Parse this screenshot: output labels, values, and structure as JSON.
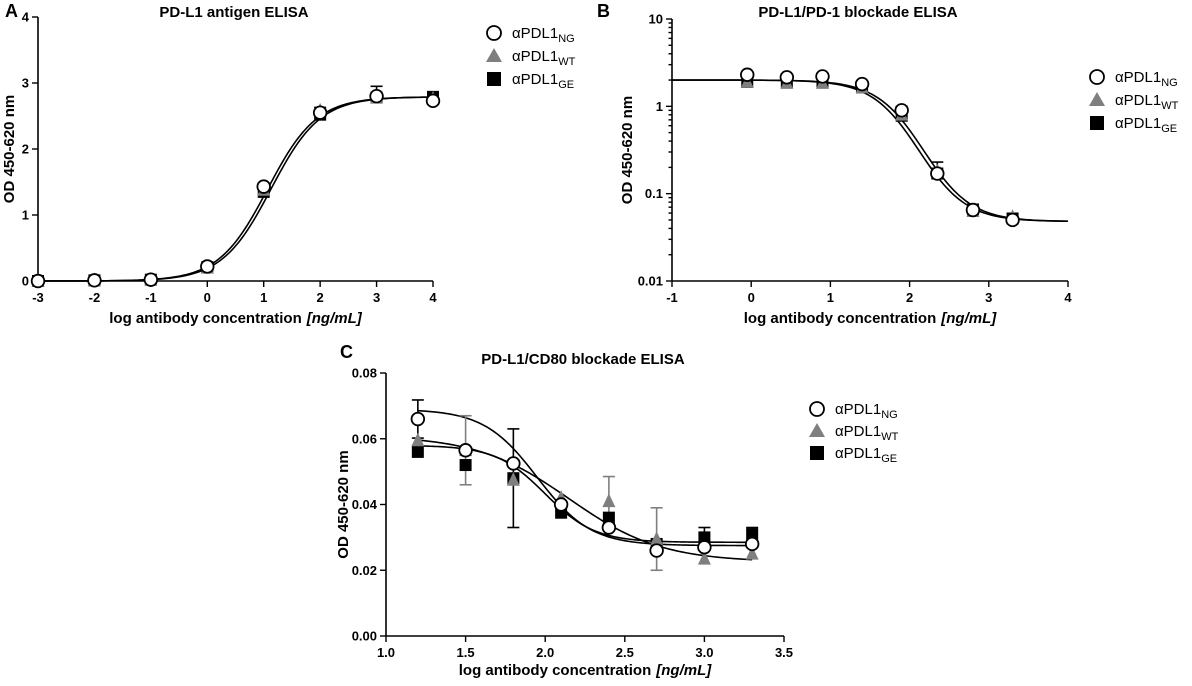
{
  "chart_data": [
    {
      "panel": "A",
      "type": "scatter",
      "title": "PD-L1 antigen ELISA",
      "xlabel": "log antibody concentration",
      "xlabel_unit": "[ng/mL]",
      "ylabel": "OD 450-620 nm",
      "xlim": [
        -3,
        4
      ],
      "ylim": [
        0,
        4
      ],
      "yscale": "linear",
      "xticks": [
        -3,
        -2,
        -1,
        0,
        1,
        2,
        3,
        4
      ],
      "xtick_labels": [
        "-3",
        "-2",
        "-1",
        "0",
        "1",
        "2",
        "3",
        "4"
      ],
      "yticks": [
        0,
        1,
        2,
        3,
        4
      ],
      "ytick_labels": [
        "0",
        "1",
        "2",
        "3",
        "4"
      ],
      "legend_position": "top-right",
      "fit": {
        "bottom": 0,
        "top": 2.79,
        "ec50": 1.1,
        "hill": 1.0,
        "shifts": [
          -0.03,
          0.03
        ]
      },
      "series": [
        {
          "name": "αPDL1",
          "sub": "NG",
          "marker": "circle",
          "color": "#000000",
          "x": [
            -3,
            -2,
            -1,
            0,
            1,
            2,
            3,
            4
          ],
          "y": [
            0.0,
            0.01,
            0.02,
            0.22,
            1.43,
            2.55,
            2.8,
            2.73
          ],
          "err": [
            0,
            0,
            0,
            0.02,
            0.05,
            0.08,
            0.15,
            0.08
          ]
        },
        {
          "name": "αPDL1",
          "sub": "WT",
          "marker": "triangle",
          "color": "#7f7f7f",
          "x": [
            -3,
            -2,
            -1,
            0,
            1,
            2,
            3,
            4
          ],
          "y": [
            0.0,
            0.01,
            0.02,
            0.2,
            1.38,
            2.58,
            2.78,
            2.76
          ],
          "err": [
            0,
            0,
            0,
            0,
            0,
            0,
            0,
            0
          ]
        },
        {
          "name": "αPDL1",
          "sub": "GE",
          "marker": "square",
          "color": "#000000",
          "x": [
            -3,
            -2,
            -1,
            0,
            1,
            2,
            3,
            4
          ],
          "y": [
            0.0,
            0.01,
            0.02,
            0.21,
            1.35,
            2.52,
            2.78,
            2.79
          ],
          "err": [
            0,
            0,
            0,
            0,
            0,
            0,
            0,
            0
          ]
        }
      ]
    },
    {
      "panel": "B",
      "type": "scatter",
      "title": "PD-L1/PD-1 blockade ELISA",
      "xlabel": "log antibody concentration",
      "xlabel_unit": "[ng/mL]",
      "ylabel": "OD 450-620 nm",
      "xlim": [
        -1,
        4
      ],
      "ylim": [
        0.01,
        10
      ],
      "yscale": "log",
      "xticks": [
        -1,
        0,
        1,
        2,
        3,
        4
      ],
      "xtick_labels": [
        "-1",
        "0",
        "1",
        "2",
        "3",
        "4"
      ],
      "yticks": [
        0.01,
        0.1,
        1,
        10
      ],
      "ytick_labels": [
        "0.01",
        "0.1",
        "1",
        "10"
      ],
      "legend_position": "right",
      "fit": {
        "bottom": 0.048,
        "top": 2.0,
        "ec50": 2.15,
        "hill": -1.45,
        "shifts": [
          -0.03,
          0.03
        ]
      },
      "series": [
        {
          "name": "αPDL1",
          "sub": "NG",
          "marker": "circle",
          "color": "#000000",
          "x": [
            -0.05,
            0.45,
            0.9,
            1.4,
            1.9,
            2.35,
            2.8,
            3.3
          ],
          "y": [
            2.3,
            2.15,
            2.2,
            1.8,
            0.9,
            0.17,
            0.065,
            0.05
          ],
          "err": [
            0.05,
            0.05,
            0.05,
            0.1,
            0.1,
            0.06,
            0.005,
            0.004
          ]
        },
        {
          "name": "αPDL1",
          "sub": "WT",
          "marker": "triangle",
          "color": "#7f7f7f",
          "x": [
            -0.05,
            0.45,
            0.9,
            1.4,
            1.9,
            2.35,
            2.8,
            3.3
          ],
          "y": [
            1.9,
            1.85,
            1.85,
            1.65,
            0.8,
            0.18,
            0.063,
            0.054
          ],
          "err": [
            0,
            0,
            0,
            0,
            0,
            0,
            0,
            0
          ]
        },
        {
          "name": "αPDL1",
          "sub": "GE",
          "marker": "square",
          "color": "#000000",
          "x": [
            -0.05,
            0.45,
            0.9,
            1.4,
            1.9,
            2.35,
            2.8,
            3.3
          ],
          "y": [
            1.9,
            1.9,
            1.9,
            1.65,
            0.78,
            0.17,
            0.066,
            0.052
          ],
          "err": [
            0,
            0,
            0,
            0,
            0,
            0,
            0,
            0
          ]
        }
      ]
    },
    {
      "panel": "C",
      "type": "scatter",
      "title": "PD-L1/CD80 blockade ELISA",
      "xlabel": "log antibody concentration",
      "xlabel_unit": "[ng/mL]",
      "ylabel": "OD 450-620 nm",
      "xlim": [
        1.0,
        3.5
      ],
      "ylim": [
        0.0,
        0.08
      ],
      "yscale": "linear",
      "xticks": [
        1.0,
        1.5,
        2.0,
        2.5,
        3.0,
        3.5
      ],
      "xtick_labels": [
        "1.0",
        "1.5",
        "2.0",
        "2.5",
        "3.0",
        "3.5"
      ],
      "yticks": [
        0.0,
        0.02,
        0.04,
        0.06,
        0.08
      ],
      "ytick_labels": [
        "0.00",
        "0.02",
        "0.04",
        "0.06",
        "0.08"
      ],
      "legend_position": "top-right",
      "fits": [
        {
          "bottom": 0.0275,
          "top": 0.069,
          "ec50": 1.95,
          "hill": -2.6
        },
        {
          "bottom": 0.0225,
          "top": 0.061,
          "ec50": 2.15,
          "hill": -1.5
        },
        {
          "bottom": 0.0285,
          "top": 0.058,
          "ec50": 2.0,
          "hill": -2.8
        }
      ],
      "series": [
        {
          "name": "αPDL1",
          "sub": "NG",
          "marker": "circle",
          "color": "#000000",
          "x": [
            1.2,
            1.5,
            1.8,
            2.1,
            2.4,
            2.7,
            3.0,
            3.3
          ],
          "y": [
            0.066,
            0.0565,
            0.0525,
            0.04,
            0.033,
            0.026,
            0.027,
            0.028
          ],
          "err": [
            0.0058,
            0.0,
            0.0,
            0.0,
            0.0,
            0.0,
            0.0,
            0.0
          ],
          "err_color": "#000000"
        },
        {
          "name": "αPDL1",
          "sub": "WT",
          "marker": "triangle",
          "color": "#7f7f7f",
          "x": [
            1.2,
            1.5,
            1.8,
            2.1,
            2.4,
            2.7,
            3.0,
            3.3
          ],
          "y": [
            0.0595,
            0.0565,
            0.0475,
            0.042,
            0.041,
            0.0295,
            0.0235,
            0.025
          ],
          "err": [
            0.0,
            0.0105,
            0.0,
            0.0,
            0.0075,
            0.0095,
            0.0,
            0.0
          ],
          "err_color": "#7f7f7f"
        },
        {
          "name": "αPDL1",
          "sub": "GE",
          "marker": "square",
          "color": "#000000",
          "x": [
            1.2,
            1.5,
            1.8,
            2.1,
            2.4,
            2.7,
            3.0,
            3.3
          ],
          "y": [
            0.056,
            0.052,
            0.048,
            0.0375,
            0.036,
            0.028,
            0.03,
            0.031
          ],
          "err": [
            0.0,
            0.0,
            0.015,
            0.0,
            0.0,
            0.0,
            0.003,
            0.002
          ],
          "err_color": "#000000"
        }
      ]
    }
  ]
}
